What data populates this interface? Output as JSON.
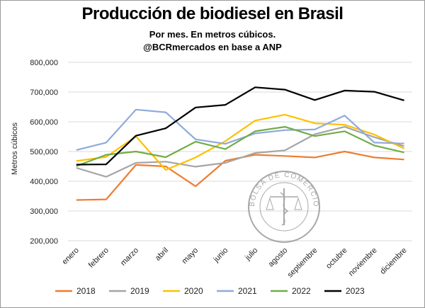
{
  "title": "Producción de biodiesel en Brasil",
  "subtitle_1": "Por mes. En metros cúbicos.",
  "subtitle_2": "@BCRmercados en base a ANP",
  "watermark_text": "BOLSA DE COMERCIO DE ROSARIO",
  "chart_data": {
    "type": "line",
    "title": "Producción de biodiesel en Brasil",
    "ylabel": "Metros cúbicos",
    "xlabel": "",
    "ylim": [
      200000,
      800000
    ],
    "yticks": [
      "200,000",
      "300,000",
      "400,000",
      "500,000",
      "600,000",
      "700,000",
      "800,000"
    ],
    "grid": true,
    "legend_position": "bottom",
    "categories": [
      "enero",
      "febrero",
      "marzo",
      "abril",
      "mayo",
      "junio",
      "julio",
      "agosto",
      "septiembre",
      "octubre",
      "noviembre",
      "diciembre"
    ],
    "series": [
      {
        "name": "2018",
        "color": "#ed7d31",
        "values": [
          337000,
          339000,
          455000,
          450000,
          383000,
          469000,
          489000,
          485000,
          480000,
          500000,
          480000,
          473000
        ]
      },
      {
        "name": "2019",
        "color": "#a5a5a5",
        "values": [
          445000,
          415000,
          462000,
          466000,
          449000,
          462000,
          495000,
          504000,
          558000,
          583000,
          548000,
          518000
        ]
      },
      {
        "name": "2020",
        "color": "#ffc000",
        "values": [
          468000,
          482000,
          551000,
          438000,
          480000,
          535000,
          604000,
          624000,
          595000,
          590000,
          557000,
          510000
        ]
      },
      {
        "name": "2021",
        "color": "#8faadc",
        "values": [
          505000,
          530000,
          641000,
          632000,
          541000,
          526000,
          561000,
          572000,
          574000,
          621000,
          530000,
          527000
        ]
      },
      {
        "name": "2022",
        "color": "#70ad47",
        "values": [
          451000,
          489000,
          500000,
          481000,
          533000,
          508000,
          568000,
          583000,
          552000,
          568000,
          520000,
          497000
        ]
      },
      {
        "name": "2023",
        "color": "#000000",
        "values": [
          456000,
          457000,
          553000,
          578000,
          648000,
          657000,
          716000,
          708000,
          673000,
          705000,
          701000,
          672000
        ]
      }
    ]
  }
}
